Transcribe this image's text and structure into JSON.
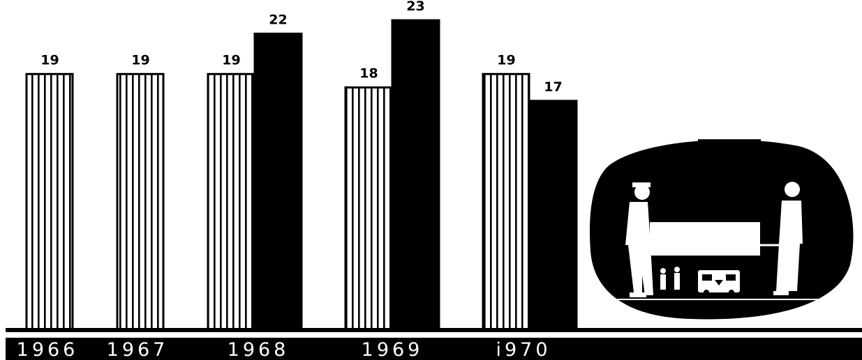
{
  "chart_data": {
    "type": "bar",
    "categories": [
      "1966",
      "1967",
      "1968",
      "1969",
      "1970"
    ],
    "category_labels": [
      "1966",
      "1967",
      "1968",
      "1969",
      "i970"
    ],
    "series": [
      {
        "values": [
          19,
          19,
          19,
          18,
          19
        ],
        "style": "striped",
        "color": "#ffffff"
      },
      {
        "values": [
          null,
          null,
          22,
          23,
          17
        ],
        "style": "solid",
        "color": "#000000"
      }
    ],
    "data_labels": true,
    "grid": false,
    "legend": "none",
    "ylim": [
      0,
      25
    ]
  },
  "illustration": {
    "icon": "stretcher-bearers-ambulance-illustration"
  }
}
